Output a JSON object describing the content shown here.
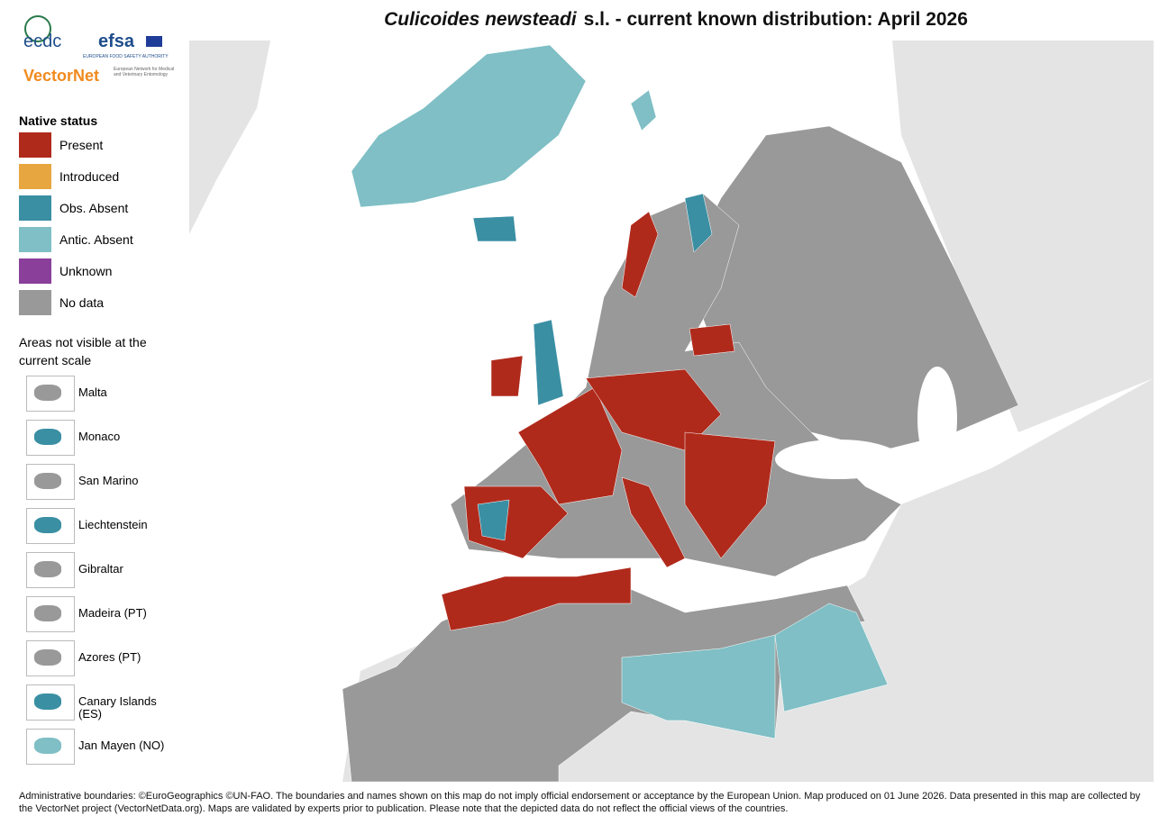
{
  "title": {
    "species": "Culicoides newsteadi",
    "rest": "s.l. - current known distribution: April 2026"
  },
  "logos": {
    "ecdc": "ecdc",
    "efsa": "efsa",
    "efsa_subtitle": "EUROPEAN FOOD SAFETY AUTHORITY",
    "vectornet": "VectorNet",
    "vectornet_subtitle": "European Network for Medical and Veterinary Entomology"
  },
  "legend": {
    "title": "Native status",
    "items": [
      {
        "label": "Present",
        "color": "#b02a1c"
      },
      {
        "label": "Introduced",
        "color": "#e8a640"
      },
      {
        "label": "Obs. Absent",
        "color": "#3a8fa3"
      },
      {
        "label": "Antic. Absent",
        "color": "#7fbfc5"
      },
      {
        "label": "Unknown",
        "color": "#8a3f9a"
      },
      {
        "label": "No data",
        "color": "#999999"
      }
    ]
  },
  "insets": {
    "title": "Areas not visible at the current scale",
    "items": [
      "Malta",
      "Monaco",
      "San Marino",
      "Liechtenstein",
      "Gibraltar",
      "Madeira (PT)",
      "Azores (PT)",
      "Canary Islands (ES)",
      "Jan Mayen (NO)"
    ]
  },
  "footer": "Administrative boundaries: ©EuroGeographics ©UN-FAO. The boundaries and names shown on this map do not imply official endorsement or acceptance by the European Union. Map produced on 01 June 2026. Data presented in this map are collected by the VectorNet project (VectorNetData.org). Maps are validated by experts prior to publication. Please note that the depicted data do not reflect the official views of the countries."
}
